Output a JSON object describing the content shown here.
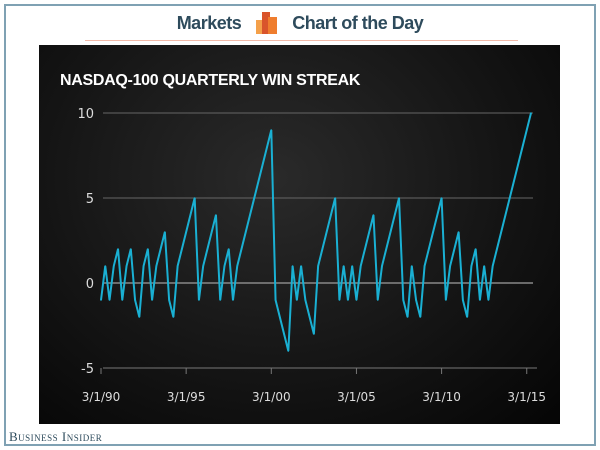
{
  "header": {
    "left": "Markets",
    "right": "Chart of the Day",
    "logo_icon": "bar-chart-logo-icon"
  },
  "footer": {
    "brand": "Business Insider"
  },
  "colors": {
    "line": "#1ab0d3",
    "header_text": "#2e4b5c",
    "panel": "#111111"
  },
  "chart_data": {
    "type": "line",
    "title": "NASDAQ-100 QUARTERLY WIN STREAK",
    "xlabel": "",
    "ylabel": "",
    "ylim": [
      -5,
      10
    ],
    "yticks": [
      -5,
      0,
      5,
      10
    ],
    "xticks": [
      "3/1/90",
      "3/1/95",
      "3/1/00",
      "3/1/05",
      "3/1/10",
      "3/1/15"
    ],
    "xtick_index": [
      0,
      20,
      40,
      60,
      80,
      100
    ],
    "grid": true,
    "series": [
      {
        "name": "Quarterly win streak",
        "start": "3/1/90",
        "frequency": "quarterly",
        "values": [
          -1,
          1,
          -1,
          1,
          2,
          -1,
          1,
          2,
          -1,
          -2,
          1,
          2,
          -1,
          1,
          2,
          3,
          -1,
          -2,
          1,
          2,
          3,
          4,
          5,
          -1,
          1,
          2,
          3,
          4,
          -1,
          1,
          2,
          -1,
          1,
          2,
          3,
          4,
          5,
          6,
          7,
          8,
          9,
          -1,
          -2,
          -3,
          -4,
          1,
          -1,
          1,
          -1,
          -2,
          -3,
          1,
          2,
          3,
          4,
          5,
          -1,
          1,
          -1,
          1,
          -1,
          1,
          2,
          3,
          4,
          -1,
          1,
          2,
          3,
          4,
          5,
          -1,
          -2,
          1,
          -1,
          -2,
          1,
          2,
          3,
          4,
          5,
          -1,
          1,
          2,
          3,
          -1,
          -2,
          1,
          2,
          -1,
          1,
          -1,
          1,
          2,
          3,
          4,
          5,
          6,
          7,
          8,
          9,
          10
        ]
      }
    ]
  }
}
